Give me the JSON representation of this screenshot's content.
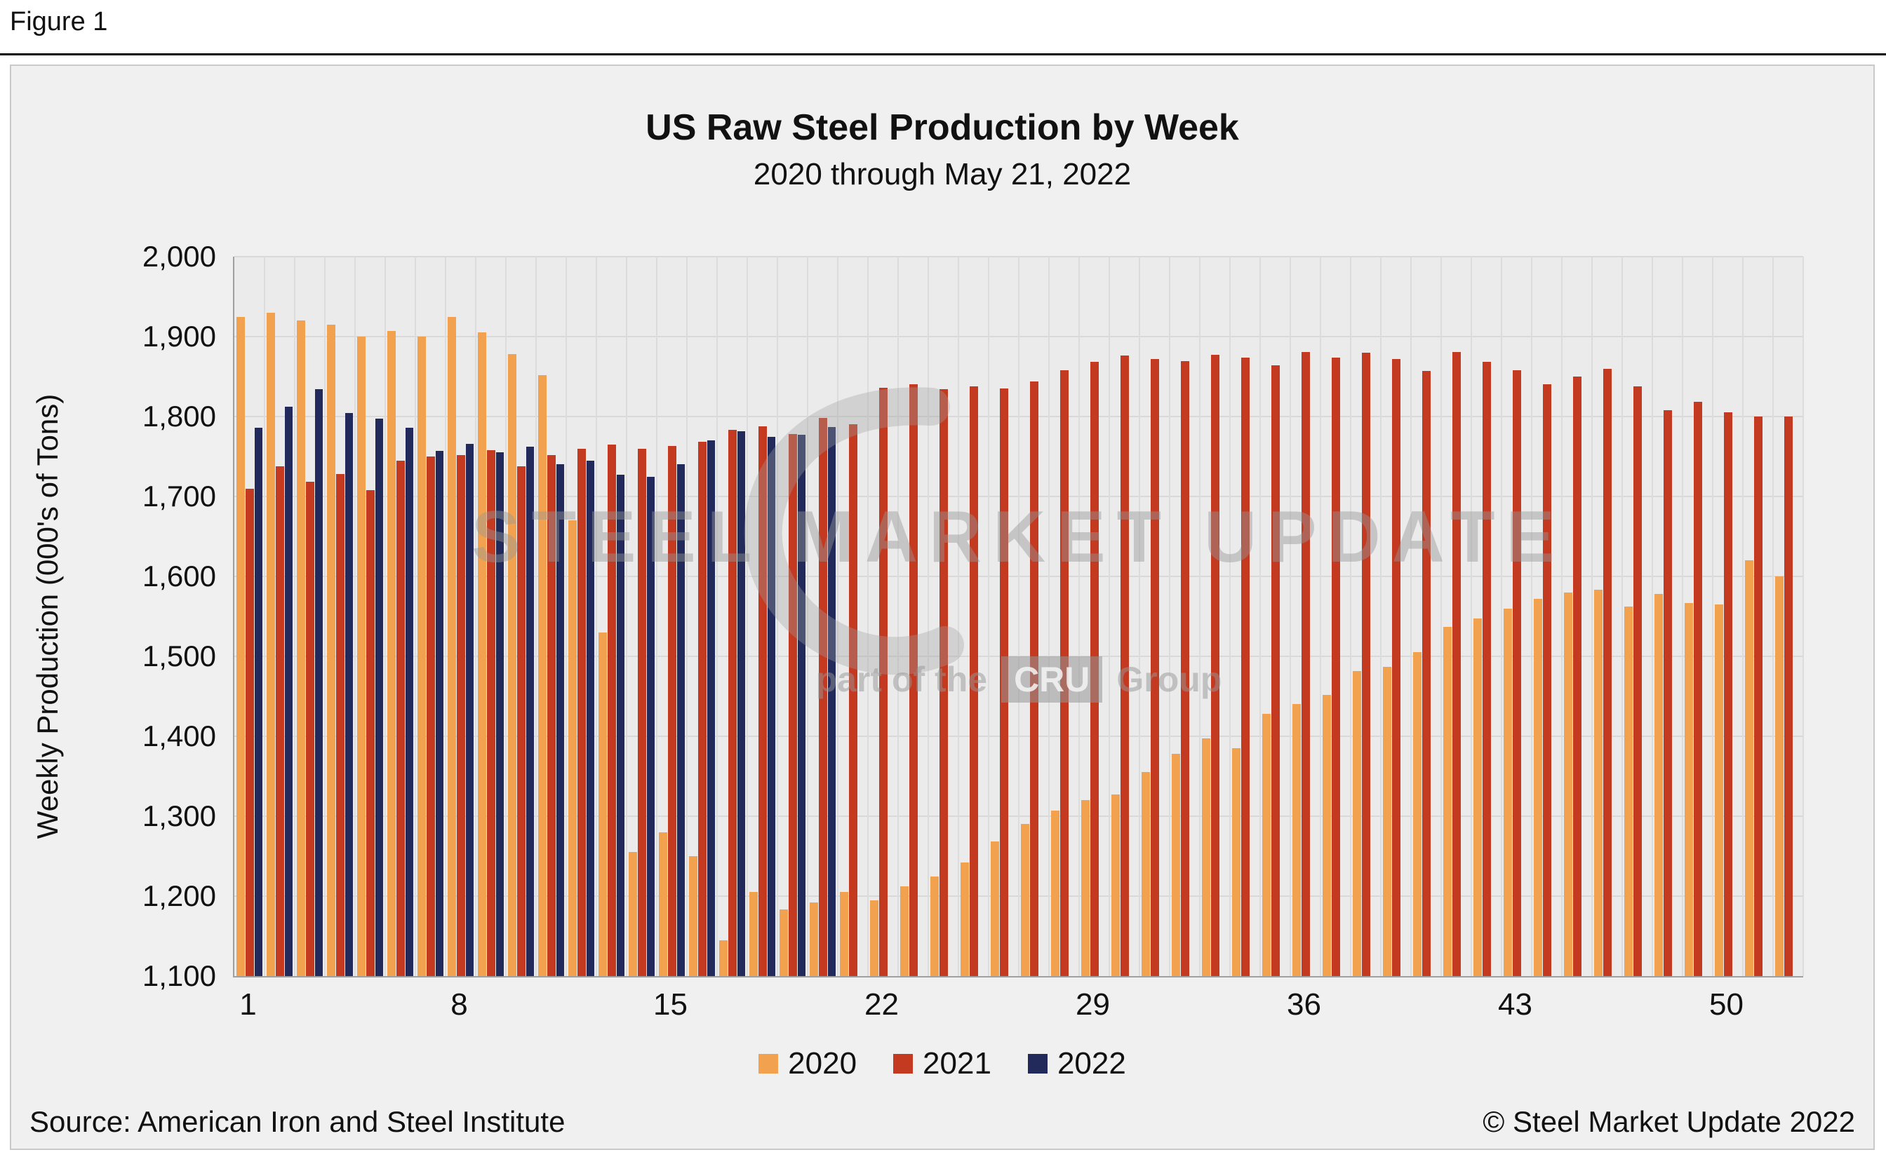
{
  "figure_label": "Figure 1",
  "watermark": {
    "line1": "STEEL MARKET UPDATE",
    "prefix": "part of the",
    "box": "CRU",
    "suffix": "Group"
  },
  "footer": {
    "source": "Source: American Iron and Steel Institute",
    "copyright": "© Steel Market Update 2022"
  },
  "chart_data": {
    "type": "bar",
    "title": "US Raw Steel Production by Week",
    "subtitle": "2020 through May 21, 2022",
    "xlabel": "",
    "ylabel": "Weekly Production (000's of Tons)",
    "ylim": [
      1100,
      2000
    ],
    "ytick_step": 100,
    "xticks": [
      1,
      8,
      15,
      22,
      29,
      36,
      43,
      50
    ],
    "grid": true,
    "legend_position": "bottom",
    "categories": [
      1,
      2,
      3,
      4,
      5,
      6,
      7,
      8,
      9,
      10,
      11,
      12,
      13,
      14,
      15,
      16,
      17,
      18,
      19,
      20,
      21,
      22,
      23,
      24,
      25,
      26,
      27,
      28,
      29,
      30,
      31,
      32,
      33,
      34,
      35,
      36,
      37,
      38,
      39,
      40,
      41,
      42,
      43,
      44,
      45,
      46,
      47,
      48,
      49,
      50,
      51,
      52
    ],
    "series": [
      {
        "name": "2020",
        "color": "#F2A24E",
        "values": [
          1925,
          1930,
          1920,
          1915,
          1900,
          1907,
          1900,
          1925,
          1905,
          1878,
          1852,
          1670,
          1530,
          1255,
          1280,
          1250,
          1145,
          1205,
          1183,
          1192,
          1205,
          1195,
          1212,
          1225,
          1242,
          1268,
          1290,
          1307,
          1320,
          1327,
          1355,
          1378,
          1397,
          1385,
          1428,
          1440,
          1452,
          1482,
          1487,
          1505,
          1537,
          1547,
          1560,
          1572,
          1580,
          1583,
          1562,
          1578,
          1567,
          1565,
          1620,
          1600
        ]
      },
      {
        "name": "2021",
        "color": "#C43A21",
        "values": [
          1710,
          1738,
          1718,
          1728,
          1708,
          1745,
          1750,
          1752,
          1758,
          1738,
          1752,
          1760,
          1765,
          1760,
          1763,
          1768,
          1783,
          1788,
          1778,
          1798,
          1790,
          1836,
          1840,
          1834,
          1838,
          1835,
          1844,
          1858,
          1868,
          1876,
          1872,
          1869,
          1877,
          1874,
          1864,
          1881,
          1874,
          1880,
          1872,
          1857,
          1881,
          1868,
          1858,
          1840,
          1850,
          1860,
          1838,
          1808,
          1818,
          1805,
          1800,
          1800
        ]
      },
      {
        "name": "2022",
        "color": "#212A5A",
        "values": [
          1786,
          1812,
          1834,
          1804,
          1797,
          1786,
          1757,
          1766,
          1755,
          1762,
          1740,
          1745,
          1727,
          1725,
          1740,
          1770,
          1782,
          1775,
          1777,
          1787,
          null,
          null,
          null,
          null,
          null,
          null,
          null,
          null,
          null,
          null,
          null,
          null,
          null,
          null,
          null,
          null,
          null,
          null,
          null,
          null,
          null,
          null,
          null,
          null,
          null,
          null,
          null,
          null,
          null,
          null,
          null,
          null
        ]
      }
    ]
  }
}
